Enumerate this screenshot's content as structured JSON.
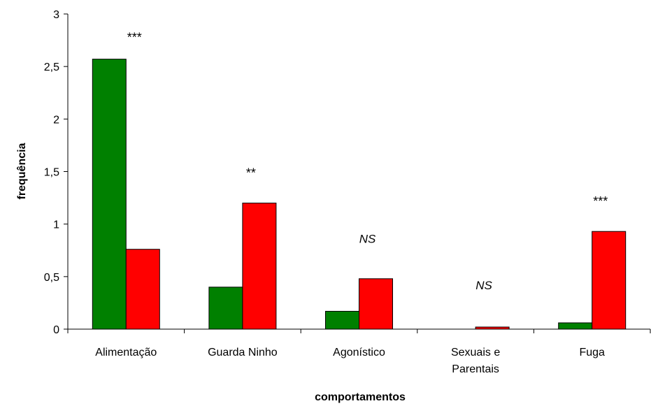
{
  "chart_data": {
    "type": "bar",
    "title": "",
    "xlabel": "comportamentos",
    "ylabel": "frequência",
    "ylim": [
      0,
      3
    ],
    "yticks": [
      "0",
      "0,5",
      "1",
      "1,5",
      "2",
      "2,5",
      "3"
    ],
    "categories": [
      "Alimentação",
      "Guarda Ninho",
      "Agonístico",
      "Sexuais e Parentais",
      "Fuga"
    ],
    "category_lines": [
      [
        "Alimentação"
      ],
      [
        "Guarda Ninho"
      ],
      [
        "Agonístico"
      ],
      [
        "Sexuais e",
        "Parentais"
      ],
      [
        "Fuga"
      ]
    ],
    "series": [
      {
        "color": "#008000",
        "values": [
          2.57,
          0.4,
          0.17,
          0.0,
          0.06
        ]
      },
      {
        "color": "#ff0000",
        "values": [
          0.76,
          1.2,
          0.48,
          0.02,
          0.93
        ]
      }
    ],
    "annotations": [
      "***",
      "**",
      "NS",
      "NS",
      "***"
    ],
    "annotation_levels": [
      2.83,
      1.54,
      0.86,
      0.42,
      1.27
    ],
    "grid": false,
    "legend": "none"
  }
}
